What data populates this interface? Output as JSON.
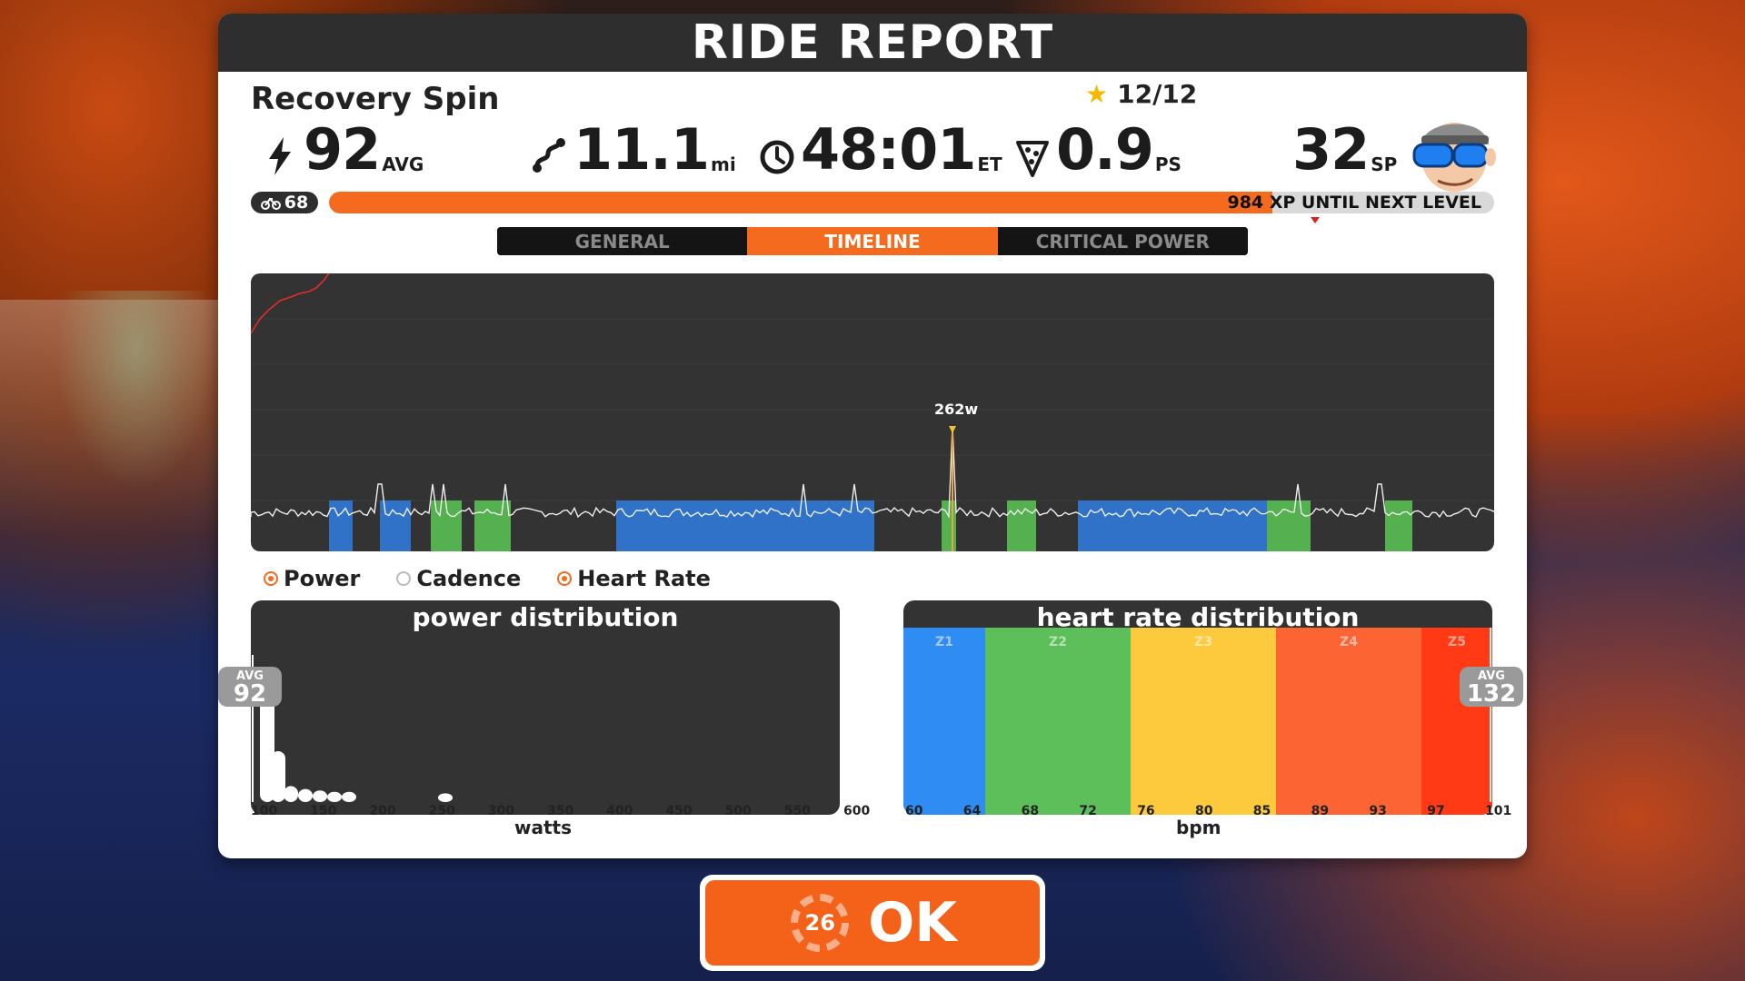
{
  "title": "RIDE REPORT",
  "ride": {
    "name": "Recovery Spin",
    "stars": "12/12"
  },
  "stats": {
    "power": {
      "value": "92",
      "unit": "AVG",
      "icon": "lightning-icon"
    },
    "distance": {
      "value": "11.1",
      "unit": "mi",
      "icon": "route-icon"
    },
    "time": {
      "value": "48:01",
      "unit": "ET",
      "icon": "clock-icon"
    },
    "pizza": {
      "value": "0.9",
      "unit": "PS",
      "icon": "pizza-icon"
    },
    "sport_points": {
      "value": "32",
      "unit": "SP"
    }
  },
  "level": {
    "number": "68",
    "xp_text": "984 XP UNTIL NEXT LEVEL",
    "progress": 0.81
  },
  "tabs": [
    "GENERAL",
    "TIMELINE",
    "CRITICAL POWER"
  ],
  "active_tab": "TIMELINE",
  "timeline": {
    "peak_label": "262w"
  },
  "legend": [
    {
      "label": "Power",
      "selected": true
    },
    {
      "label": "Cadence",
      "selected": false
    },
    {
      "label": "Heart Rate",
      "selected": true
    }
  ],
  "power_distribution": {
    "title": "power distribution",
    "avg_label": "AVG",
    "avg_value": "92",
    "ticks": [
      "100",
      "150",
      "200",
      "250",
      "300",
      "350",
      "400",
      "450",
      "500",
      "550",
      "600"
    ],
    "xlabel": "watts"
  },
  "hr_distribution": {
    "title": "heart rate distribution",
    "avg_label": "AVG",
    "avg_value": "132",
    "zones": [
      {
        "name": "Z1",
        "color": "#2f8cf2"
      },
      {
        "name": "Z2",
        "color": "#5cbf5a"
      },
      {
        "name": "Z3",
        "color": "#fdc93d"
      },
      {
        "name": "Z4",
        "color": "#fc6433"
      },
      {
        "name": "Z5",
        "color": "#ff3a14"
      }
    ],
    "ticks": [
      "60",
      "64",
      "68",
      "72",
      "76",
      "80",
      "85",
      "89",
      "93",
      "97",
      "101"
    ],
    "xlabel": "bpm"
  },
  "ok_button": {
    "label": "OK",
    "countdown": "26"
  },
  "colors": {
    "accent": "#f46a1f",
    "panel_dark": "#333333"
  }
}
